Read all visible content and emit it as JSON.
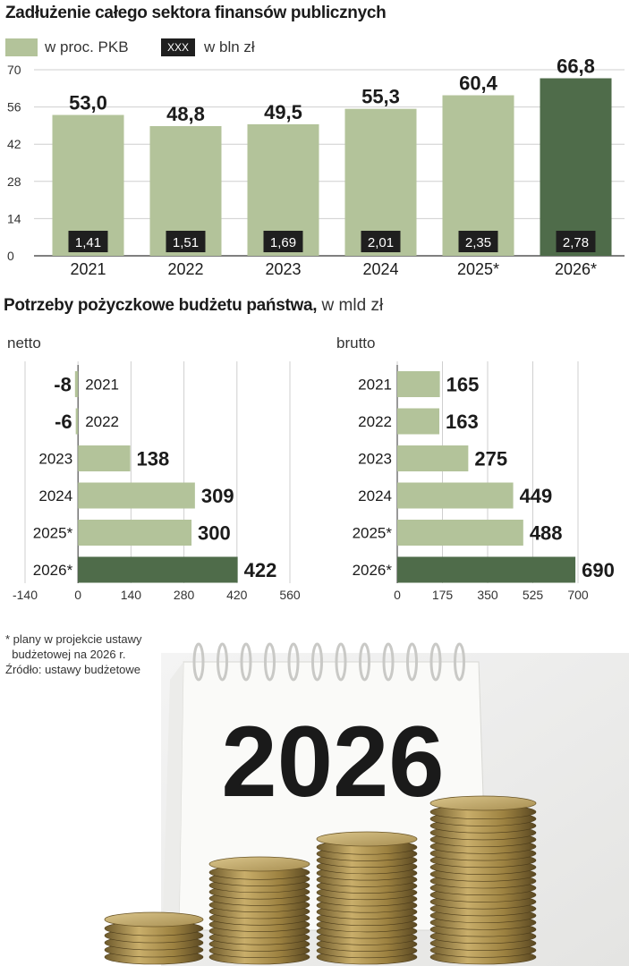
{
  "colors": {
    "bar": "#b3c39a",
    "highlight": "#4f6c4a",
    "badge": "#1f1f1f",
    "grid": "#cfcfcf"
  },
  "top": {
    "title": "Zadłużenie całego sektora finansów publicznych",
    "legend_pct": "w proc. PKB",
    "legend_box": "XXX",
    "legend_bln": "w bln zł"
  },
  "bottom": {
    "title_bold": "Potrzeby pożyczkowe budżetu państwa,",
    "title_unit": " w mld zł",
    "netto_label": "netto",
    "brutto_label": "brutto"
  },
  "footnote": {
    "line1": "* plany w projekcie ustawy",
    "line2": "  budżetowej na 2026 r.",
    "line3": "Źródło: ustawy budżetowe"
  },
  "photo": {
    "calendar_text": "2026"
  },
  "chart_data": [
    {
      "type": "bar",
      "title": "Zadłużenie całego sektora finansów publicznych",
      "categories": [
        "2021",
        "2022",
        "2023",
        "2024",
        "2025*",
        "2026*"
      ],
      "series": [
        {
          "name": "w proc. PKB",
          "values": [
            53.0,
            48.8,
            49.5,
            55.3,
            60.4,
            66.8
          ],
          "labels": [
            "53,0",
            "48,8",
            "49,5",
            "55,3",
            "60,4",
            "66,8"
          ]
        },
        {
          "name": "w bln zł",
          "values": [
            1.41,
            1.51,
            1.69,
            2.01,
            2.35,
            2.78
          ],
          "labels": [
            "1,41",
            "1,51",
            "1,69",
            "2,01",
            "2,35",
            "2,78"
          ]
        }
      ],
      "highlight_index": 5,
      "ylim": [
        0,
        70
      ],
      "yticks": [
        0,
        14,
        28,
        42,
        56,
        70
      ],
      "grid": true
    },
    {
      "type": "bar",
      "orientation": "horizontal",
      "title": "netto",
      "categories": [
        "2021",
        "2022",
        "2023",
        "2024",
        "2025*",
        "2026*"
      ],
      "values": [
        -8,
        -6,
        138,
        309,
        300,
        422
      ],
      "labels": [
        "-8",
        "-6",
        "138",
        "309",
        "300",
        "422"
      ],
      "highlight_index": 5,
      "xlim": [
        -140,
        560
      ],
      "xticks": [
        -140,
        0,
        140,
        280,
        420,
        560
      ],
      "grid": true
    },
    {
      "type": "bar",
      "orientation": "horizontal",
      "title": "brutto",
      "categories": [
        "2021",
        "2022",
        "2023",
        "2024",
        "2025*",
        "2026*"
      ],
      "values": [
        165,
        163,
        275,
        449,
        488,
        690
      ],
      "labels": [
        "165",
        "163",
        "275",
        "449",
        "488",
        "690"
      ],
      "highlight_index": 5,
      "xlim": [
        0,
        700
      ],
      "xticks": [
        0,
        175,
        350,
        525,
        700
      ],
      "grid": true
    }
  ]
}
